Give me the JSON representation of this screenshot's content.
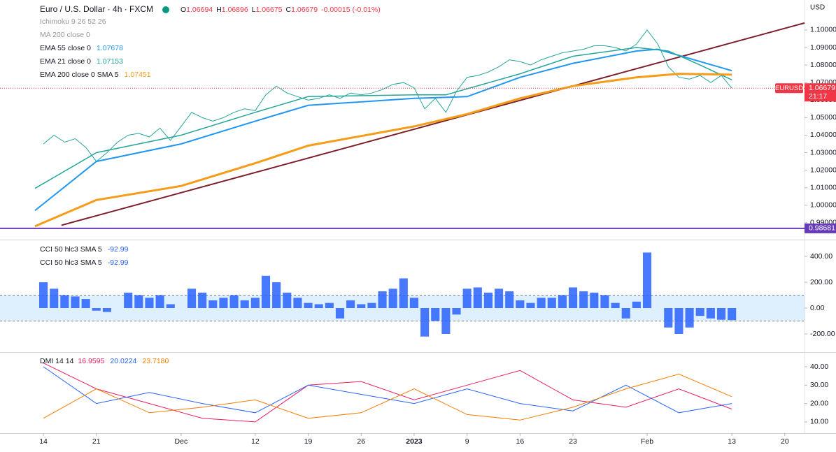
{
  "header": {
    "title": "Euro / U.S. Dollar · 4h · FXCM",
    "ohlc": [
      [
        "O",
        "1.06694"
      ],
      [
        "H",
        "1.06896"
      ],
      [
        "L",
        "1.06675"
      ],
      [
        "C",
        "1.06679"
      ]
    ],
    "change": "-0.00015 (-0.01%)",
    "currency": "USD",
    "hidden_indicators": [
      "Ichimoku 9 26 52 26",
      "MA 200 close 0"
    ]
  },
  "xaxis": {
    "xlim": [
      -4.1,
      71.86
    ],
    "xticks": [
      {
        "value": 0,
        "label": "14"
      },
      {
        "value": 5,
        "label": "21"
      },
      {
        "value": 13,
        "label": "Dec"
      },
      {
        "value": 20,
        "label": "12"
      },
      {
        "value": 25,
        "label": "19"
      },
      {
        "value": 30,
        "label": "26"
      },
      {
        "value": 35,
        "label": "2023",
        "bold": true
      },
      {
        "value": 40,
        "label": "9"
      },
      {
        "value": 45,
        "label": "16"
      },
      {
        "value": 50,
        "label": "23"
      },
      {
        "value": 57,
        "label": "Feb"
      },
      {
        "value": 65,
        "label": "13"
      },
      {
        "value": 70,
        "label": "20"
      }
    ]
  },
  "chart_data": [
    {
      "type": "line",
      "ylim": [
        0.9808,
        1.1171
      ],
      "yticks": [
        {
          "value": 0.99,
          "label": "0.99000"
        },
        {
          "value": 1.0,
          "label": "1.00000"
        },
        {
          "value": 1.01,
          "label": "1.01000"
        },
        {
          "value": 1.02,
          "label": "1.02000"
        },
        {
          "value": 1.03,
          "label": "1.03000"
        },
        {
          "value": 1.04,
          "label": "1.04000"
        },
        {
          "value": 1.05,
          "label": "1.05000"
        },
        {
          "value": 1.06,
          "label": "1.06000"
        },
        {
          "value": 1.07,
          "label": "1.07000"
        },
        {
          "value": 1.08,
          "label": "1.08000"
        },
        {
          "value": 1.09,
          "label": "1.09000"
        },
        {
          "value": 1.1,
          "label": "1.10000"
        }
      ],
      "series": [
        {
          "name": "EURUSD",
          "color": "#26a69a",
          "width": 1,
          "x": [
            0,
            1,
            2,
            3,
            4,
            5,
            6,
            7,
            8,
            9,
            10,
            11,
            12,
            13,
            14,
            15,
            16,
            17,
            18,
            19,
            20,
            21,
            22,
            23,
            24,
            25,
            26,
            27,
            28,
            29,
            30,
            31,
            32,
            33,
            34,
            35,
            36,
            37,
            38,
            39,
            40,
            41,
            42,
            43,
            44,
            45,
            46,
            47,
            48,
            49,
            50,
            51,
            52,
            53,
            54,
            55,
            56,
            57,
            58,
            59,
            60,
            61,
            62,
            63,
            64,
            65
          ],
          "values": [
            1.035,
            1.04,
            1.036,
            1.038,
            1.033,
            1.025,
            1.03,
            1.036,
            1.04,
            1.041,
            1.039,
            1.044,
            1.037,
            1.045,
            1.053,
            1.05,
            1.048,
            1.05,
            1.053,
            1.055,
            1.054,
            1.063,
            1.068,
            1.064,
            1.062,
            1.06,
            1.061,
            1.063,
            1.061,
            1.064,
            1.063,
            1.064,
            1.066,
            1.069,
            1.07,
            1.067,
            1.055,
            1.061,
            1.053,
            1.065,
            1.073,
            1.074,
            1.076,
            1.079,
            1.083,
            1.082,
            1.08,
            1.083,
            1.085,
            1.087,
            1.088,
            1.089,
            1.091,
            1.091,
            1.09,
            1.088,
            1.092,
            1.1,
            1.092,
            1.079,
            1.073,
            1.072,
            1.074,
            1.07,
            1.074,
            1.06679
          ]
        },
        {
          "name": "EMA 55 close 0",
          "color": "#2196f3",
          "width": 2,
          "last_label": "1.07678",
          "x": [
            -0.8,
            5,
            13,
            20,
            25,
            35,
            40,
            45,
            50,
            56,
            58,
            62,
            65
          ],
          "values": [
            0.997,
            1.025,
            1.035,
            1.048,
            1.057,
            1.061,
            1.062,
            1.073,
            1.081,
            1.088,
            1.089,
            1.082,
            1.07678
          ]
        },
        {
          "name": "EMA 21 close 0",
          "color": "#26a69a",
          "width": 1.5,
          "last_label": "1.07153",
          "x": [
            -0.8,
            5,
            13,
            20,
            25,
            35,
            38,
            45,
            50,
            56,
            59,
            62,
            65
          ],
          "values": [
            1.0096,
            1.03,
            1.04,
            1.053,
            1.062,
            1.063,
            1.063,
            1.075,
            1.085,
            1.09,
            1.088,
            1.08,
            1.07153
          ]
        },
        {
          "name": "EMA 200 close 0 SMA 5",
          "color": "#f59c1a",
          "width": 3,
          "last_label": "1.07451",
          "x": [
            -0.8,
            5,
            13,
            20,
            25,
            35,
            40,
            45,
            50,
            56,
            60,
            65
          ],
          "values": [
            0.988,
            1.003,
            1.011,
            1.024,
            1.034,
            1.045,
            1.052,
            1.061,
            1.068,
            1.073,
            1.075,
            1.07451
          ]
        }
      ],
      "lines": [
        {
          "color": "#7b1e2a",
          "x": [
            1.7,
            71.86
          ],
          "values": [
            0.9886,
            1.104
          ]
        }
      ],
      "hline": {
        "value": 0.98681,
        "label": "0.98681",
        "color": "#673ab7"
      },
      "last_price": {
        "value": 1.06679,
        "symbol": "EURUSD",
        "label": "1.06679",
        "countdown": "21:17",
        "color": "#f23645"
      }
    },
    {
      "type": "bar",
      "ylim": [
        -335,
        519
      ],
      "yticks": [
        {
          "value": -200,
          "label": "-200.00"
        },
        {
          "value": 0,
          "label": "0.00"
        },
        {
          "value": 200,
          "label": "200.00"
        },
        {
          "value": 400,
          "label": "400.00"
        }
      ],
      "band": [
        -100,
        100
      ],
      "legend": [
        {
          "name": "CCI 50 hlc3 SMA 5",
          "last_label": "-92.99"
        },
        {
          "name": "CCI 50 hlc3 SMA 5",
          "last_label": "-92.99"
        }
      ],
      "series": [
        {
          "name": "CCI 50 hlc3 SMA 5",
          "color": "#2962ff",
          "x": [
            0,
            1,
            2,
            3,
            4,
            5,
            6,
            7,
            8,
            9,
            10,
            11,
            12,
            13,
            14,
            15,
            16,
            17,
            18,
            19,
            20,
            21,
            22,
            23,
            24,
            25,
            26,
            27,
            28,
            29,
            30,
            31,
            32,
            33,
            34,
            35,
            36,
            37,
            38,
            39,
            40,
            41,
            42,
            43,
            44,
            45,
            46,
            47,
            48,
            49,
            50,
            51,
            52,
            53,
            54,
            55,
            56,
            57,
            58,
            59,
            60,
            61,
            62,
            63,
            64,
            65
          ],
          "values": [
            200,
            150,
            100,
            90,
            70,
            -20,
            -30,
            0,
            120,
            100,
            80,
            100,
            30,
            0,
            150,
            120,
            60,
            80,
            100,
            60,
            80,
            250,
            200,
            120,
            80,
            40,
            30,
            40,
            -80,
            60,
            30,
            40,
            130,
            150,
            230,
            80,
            -220,
            -100,
            -200,
            -50,
            150,
            160,
            120,
            150,
            130,
            60,
            40,
            80,
            80,
            100,
            160,
            130,
            120,
            100,
            40,
            -80,
            50,
            430,
            0,
            -150,
            -200,
            -150,
            -60,
            -80,
            -90,
            -92.99
          ]
        }
      ]
    },
    {
      "type": "line",
      "title": "DMI 14 14",
      "ylim": [
        3.9,
        47.6
      ],
      "yticks": [
        {
          "value": 10,
          "label": "10.00"
        },
        {
          "value": 20,
          "label": "20.00"
        },
        {
          "value": 30,
          "label": "30.00"
        },
        {
          "value": 40,
          "label": "40.00"
        }
      ],
      "series": [
        {
          "name": "+DI",
          "color": "#e91e63",
          "width": 1,
          "last_label": "16.9595",
          "x": [
            0,
            5,
            10,
            15,
            20,
            25,
            30,
            35,
            40,
            45,
            50,
            55,
            60,
            65
          ],
          "values": [
            42,
            28,
            20,
            12,
            10,
            30,
            32,
            22,
            30,
            38,
            22,
            18,
            28,
            16.9595
          ]
        },
        {
          "name": "-DI",
          "color": "#2962ff",
          "width": 1,
          "last_label": "20.0224",
          "x": [
            0,
            5,
            10,
            15,
            20,
            25,
            30,
            35,
            40,
            45,
            50,
            55,
            60,
            65
          ],
          "values": [
            40,
            20,
            26,
            20,
            15,
            30,
            25,
            20,
            28,
            20,
            16,
            30,
            15,
            20.0224
          ]
        },
        {
          "name": "ADX",
          "color": "#f57c00",
          "width": 1,
          "last_label": "23.7180",
          "x": [
            0,
            5,
            10,
            15,
            20,
            25,
            30,
            35,
            40,
            45,
            50,
            55,
            60,
            65
          ],
          "values": [
            12,
            28,
            15,
            18,
            22,
            12,
            15,
            28,
            14,
            11,
            18,
            28,
            36,
            23.718
          ]
        }
      ]
    }
  ]
}
